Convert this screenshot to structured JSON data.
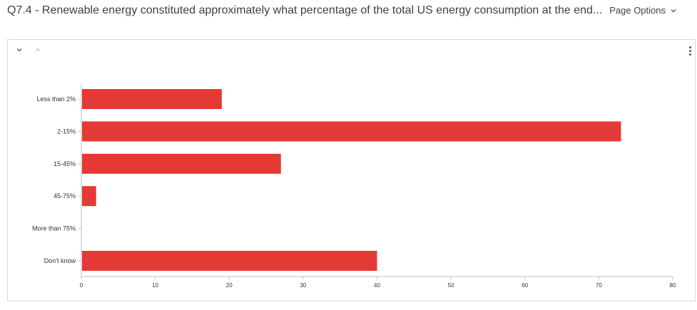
{
  "header": {
    "question_title": "Q7.4 - Renewable energy constituted approximately what percentage of the total US energy consumption at the end...",
    "page_options_label": "Page Options"
  },
  "icons": {
    "collapse": "chevron-down-icon",
    "expand": "chevron-up-icon",
    "menu": "kebab-menu-icon",
    "page_options": "chevron-down-icon"
  },
  "colors": {
    "bar": "#e53935",
    "axis": "#bdbdbd"
  },
  "chart_data": {
    "type": "bar",
    "orientation": "horizontal",
    "categories": [
      "Less than 2%",
      "2-15%",
      "15-45%",
      "45-75%",
      "More than 75%",
      "Don't know"
    ],
    "values": [
      19,
      73,
      27,
      2,
      0,
      40
    ],
    "xlim": [
      0,
      80
    ],
    "xticks": [
      0,
      10,
      20,
      30,
      40,
      50,
      60,
      70,
      80
    ],
    "grid": false
  }
}
